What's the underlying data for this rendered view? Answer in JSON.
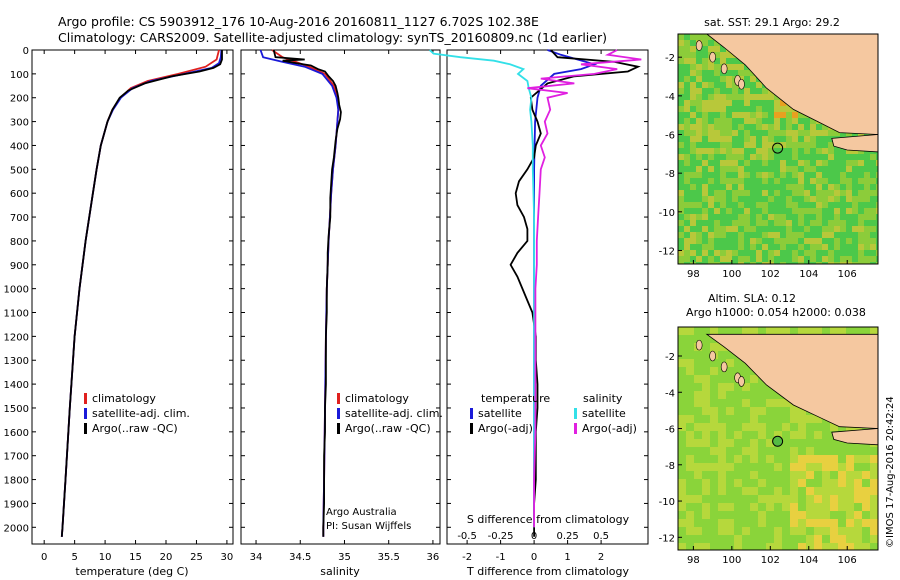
{
  "header": {
    "line1": "Argo profile: CS 5903912_176 10-Aug-2016 20160811_1127 6.702S 102.38E",
    "line2": "Climatology: CARS2009. Satellite-adjusted climatology: synTS_20160809.nc (1d earlier)"
  },
  "colors": {
    "climatology": "#e0201e",
    "satellite": "#1a1ad8",
    "argo": "#000000",
    "sat_salinity": "#33e0e8",
    "argo_salinity": "#e020e0",
    "land": "#f5c8a0"
  },
  "chart_data": [
    {
      "type": "line",
      "panel": "temperature",
      "xlabel": "temperature (deg C)",
      "ylabel": "",
      "xlim": [
        -2,
        31
      ],
      "ylim": [
        2070,
        0
      ],
      "x_ticks": [
        0,
        5,
        10,
        15,
        20,
        25,
        30
      ],
      "y_ticks": [
        0,
        100,
        200,
        300,
        400,
        500,
        600,
        700,
        800,
        900,
        1000,
        1100,
        1200,
        1300,
        1400,
        1500,
        1600,
        1700,
        1800,
        1900,
        2000
      ],
      "legend": [
        "climatology",
        "satellite-adj. clim.",
        "Argo(..raw -QC)"
      ],
      "series": [
        {
          "name": "climatology",
          "depth": [
            0,
            40,
            70,
            100,
            130,
            160,
            200,
            250,
            300,
            400,
            500,
            600,
            800,
            1000,
            1200,
            1500,
            1800,
            2000,
            2040
          ],
          "values": [
            28.7,
            28.3,
            26.5,
            22,
            17,
            14.2,
            12.5,
            11.2,
            10.4,
            9.3,
            8.6,
            8.0,
            6.8,
            5.8,
            5.0,
            4.2,
            3.5,
            3.0,
            2.9
          ]
        },
        {
          "name": "satellite-adj. clim.",
          "depth": [
            0,
            30,
            55,
            75,
            100,
            130,
            160,
            200,
            250,
            300,
            400,
            500,
            600,
            800,
            1000,
            1200,
            1500,
            1800,
            2000,
            2040
          ],
          "values": [
            29.1,
            29.0,
            28.7,
            27.5,
            23,
            17.5,
            14.5,
            12.6,
            11.3,
            10.4,
            9.3,
            8.6,
            8.0,
            6.8,
            5.8,
            5.0,
            4.2,
            3.5,
            3.0,
            2.9
          ]
        },
        {
          "name": "Argo(..raw -QC)",
          "depth": [
            0,
            40,
            60,
            75,
            90,
            110,
            140,
            170,
            200,
            250,
            300,
            400,
            500,
            600,
            800,
            1000,
            1200,
            1500,
            1800,
            2000,
            2040
          ],
          "values": [
            29.2,
            29.2,
            28.9,
            27.8,
            25.5,
            21,
            16.5,
            13.8,
            12.4,
            11.2,
            10.4,
            9.3,
            8.6,
            8.0,
            6.8,
            5.8,
            5.0,
            4.2,
            3.5,
            3.0,
            2.9
          ]
        }
      ]
    },
    {
      "type": "line",
      "panel": "salinity",
      "xlabel": "salinity",
      "xlim": [
        33.83,
        36.08
      ],
      "ylim": [
        2070,
        0
      ],
      "x_ticks": [
        34,
        34.5,
        35,
        35.5,
        36
      ],
      "legend": [
        "climatology",
        "satellite-adj. clim.",
        "Argo(..raw -QC)"
      ],
      "annotation": [
        "Argo Australia",
        "PI: Susan Wijffels"
      ],
      "series": [
        {
          "name": "climatology",
          "depth": [
            0,
            30,
            50,
            70,
            100,
            150,
            200,
            250,
            300,
            400,
            500,
            600,
            800,
            1000,
            1200,
            1500,
            1800,
            2000,
            2040
          ],
          "values": [
            34.18,
            34.3,
            34.45,
            34.6,
            34.78,
            34.88,
            34.92,
            34.93,
            34.92,
            34.9,
            34.87,
            34.85,
            34.82,
            34.8,
            34.79,
            34.78,
            34.77,
            34.76,
            34.76
          ]
        },
        {
          "name": "satellite-adj. clim.",
          "depth": [
            0,
            30,
            50,
            70,
            100,
            150,
            200,
            250,
            300,
            400,
            500,
            600,
            800,
            1000,
            1200,
            1500,
            1800,
            2000,
            2040
          ],
          "values": [
            34.05,
            34.08,
            34.3,
            34.55,
            34.75,
            34.86,
            34.91,
            34.93,
            34.92,
            34.9,
            34.87,
            34.85,
            34.82,
            34.8,
            34.79,
            34.78,
            34.77,
            34.76,
            34.76
          ]
        },
        {
          "name": "Argo(..raw -QC)",
          "depth": [
            0,
            30,
            40,
            45,
            55,
            65,
            80,
            90,
            110,
            130,
            150,
            180,
            200,
            230,
            260,
            290,
            330,
            380,
            450,
            500,
            560,
            620,
            700,
            780,
            850,
            900,
            1000,
            1100,
            1200,
            1300,
            1400,
            1500,
            1600,
            1700,
            1800,
            1900,
            2000,
            2040
          ],
          "values": [
            34.2,
            34.22,
            34.55,
            34.3,
            34.45,
            34.62,
            34.7,
            34.78,
            34.82,
            34.87,
            34.9,
            34.92,
            34.93,
            34.94,
            34.96,
            34.95,
            34.92,
            34.9,
            34.88,
            34.86,
            34.85,
            34.84,
            34.84,
            34.82,
            34.81,
            34.81,
            34.8,
            34.8,
            34.79,
            34.79,
            34.79,
            34.78,
            34.78,
            34.77,
            34.77,
            34.77,
            34.76,
            34.76
          ]
        }
      ]
    },
    {
      "type": "line",
      "panel": "difference",
      "xlabel": "T difference from climatology",
      "xlabel_top": "S difference from climatology",
      "xlim": [
        -2.6,
        3.4
      ],
      "ylim": [
        2070,
        0
      ],
      "x_ticks": [
        -2,
        -1,
        0,
        1,
        2
      ],
      "x_ticks_top": [
        -0.5,
        -0.25,
        0,
        0.25,
        0.5
      ],
      "legend_t_title": "temperature",
      "legend_s_title": "salinity",
      "legend_t": [
        "satellite",
        "Argo(-adj)"
      ],
      "legend_s": [
        "satellite",
        "Argo(-adj)"
      ],
      "series": [
        {
          "name": "satellite",
          "quantity": "temperature",
          "depth": [
            0,
            20,
            40,
            60,
            80,
            100,
            150,
            200,
            300,
            500,
            1000,
            2000
          ],
          "values": [
            0.4,
            0.8,
            1.3,
            1.8,
            1.4,
            0.6,
            0.2,
            0.1,
            0.03,
            0,
            0,
            0
          ]
        },
        {
          "name": "Argo(-adj)",
          "quantity": "temperature",
          "depth": [
            0,
            30,
            50,
            70,
            90,
            110,
            140,
            170,
            200,
            250,
            300,
            350,
            400,
            450,
            500,
            550,
            600,
            650,
            700,
            750,
            800,
            850,
            900,
            950,
            1000,
            1050,
            1100,
            1200,
            1300,
            1400,
            1500,
            1600,
            1700,
            1800,
            1900,
            2000,
            2040
          ],
          "values": [
            0.5,
            0.7,
            2.4,
            3.1,
            2.8,
            1.2,
            0.4,
            0.15,
            -0.1,
            -0.05,
            0.1,
            0.2,
            0.05,
            0,
            -0.2,
            -0.45,
            -0.55,
            -0.5,
            -0.3,
            -0.2,
            -0.2,
            -0.5,
            -0.7,
            -0.5,
            -0.35,
            -0.2,
            -0.05,
            0.05,
            0.05,
            0.1,
            0.1,
            0.05,
            0.05,
            0.05,
            0,
            0,
            0
          ]
        },
        {
          "name": "satellite",
          "quantity": "salinity",
          "depth": [
            0,
            15,
            30,
            45,
            60,
            80,
            100,
            130,
            160,
            200,
            250,
            300,
            400,
            500,
            700,
            900,
            1200,
            1500,
            2000
          ],
          "values": [
            -0.78,
            -0.75,
            -0.55,
            -0.3,
            -0.18,
            -0.08,
            -0.12,
            -0.05,
            -0.04,
            -0.02,
            -0.03,
            -0.02,
            -0.01,
            -0.01,
            0,
            0,
            0,
            0,
            0
          ]
        },
        {
          "name": "Argo(-adj)",
          "quantity": "salinity",
          "depth": [
            0,
            20,
            40,
            60,
            80,
            100,
            120,
            140,
            160,
            180,
            200,
            250,
            300,
            350,
            400,
            450,
            500,
            600,
            700,
            800,
            900,
            1000,
            1100,
            1200,
            1400,
            1600,
            1800,
            2000
          ],
          "values": [
            0.62,
            0.55,
            0.8,
            0.35,
            0.62,
            0.45,
            0.05,
            0.3,
            -0.05,
            0.25,
            0.1,
            0.12,
            0.08,
            0.1,
            0.05,
            0.08,
            0.05,
            0.04,
            0.03,
            0.02,
            0.02,
            0.01,
            0.01,
            0.01,
            0.01,
            0.01,
            0,
            0
          ]
        }
      ]
    },
    {
      "type": "heatmap",
      "panel": "sst-map",
      "title": "sat. SST: 29.1 Argo: 29.2",
      "x_ticks": [
        98,
        100,
        102,
        104,
        106
      ],
      "y_ticks": [
        -2,
        -4,
        -6,
        -8,
        -10,
        -12
      ],
      "xlim": [
        97.2,
        107.6
      ],
      "ylim": [
        -12.7,
        -0.8
      ],
      "marker": {
        "lon": 102.38,
        "lat": -6.702
      }
    },
    {
      "type": "heatmap",
      "panel": "sla-map",
      "title": "Altim. SLA: 0.12",
      "subtitle": "Argo h1000: 0.054 h2000: 0.038",
      "x_ticks": [
        98,
        100,
        102,
        104,
        106
      ],
      "y_ticks": [
        -2,
        -4,
        -6,
        -8,
        -10,
        -12
      ],
      "xlim": [
        97.2,
        107.6
      ],
      "ylim": [
        -12.7,
        -0.4
      ],
      "marker": {
        "lon": 102.38,
        "lat": -6.702
      }
    }
  ],
  "footer": {
    "credit": "©IMOS 17-Aug-2016 20:42:24"
  }
}
